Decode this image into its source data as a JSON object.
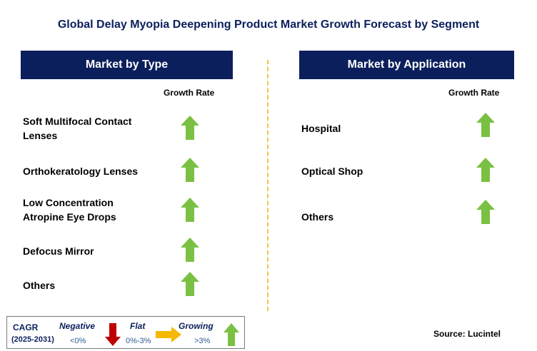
{
  "title": "Global Delay Myopia Deepening Product Market Growth Forecast by Segment",
  "left_panel": {
    "header": "Market by Type",
    "growth_label": "Growth Rate",
    "items": [
      {
        "label": "Soft Multifocal Contact Lenses",
        "trend": "growing"
      },
      {
        "label": "Orthokeratology Lenses",
        "trend": "growing"
      },
      {
        "label": "Low Concentration Atropine Eye Drops",
        "trend": "growing"
      },
      {
        "label": "Defocus Mirror",
        "trend": "growing"
      },
      {
        "label": "Others",
        "trend": "growing"
      }
    ]
  },
  "right_panel": {
    "header": "Market by Application",
    "growth_label": "Growth Rate",
    "items": [
      {
        "label": "Hospital",
        "trend": "growing"
      },
      {
        "label": "Optical Shop",
        "trend": "growing"
      },
      {
        "label": "Others",
        "trend": "growing"
      }
    ]
  },
  "legend": {
    "cagr": "CAGR",
    "years": "(2025-2031)",
    "negative": {
      "label": "Negative",
      "value": "<0%",
      "icon": "red-down-arrow-icon"
    },
    "flat": {
      "label": "Flat",
      "value": "0%-3%",
      "icon": "orange-right-arrow-icon"
    },
    "growing": {
      "label": "Growing",
      "value": ">3%",
      "icon": "green-up-arrow-icon"
    }
  },
  "source": "Source: Lucintel",
  "colors": {
    "header_bg": "#0b1f5c",
    "growing": "#7ac143",
    "flat": "#f5b800",
    "negative": "#c00000",
    "divider": "#f5c242"
  }
}
